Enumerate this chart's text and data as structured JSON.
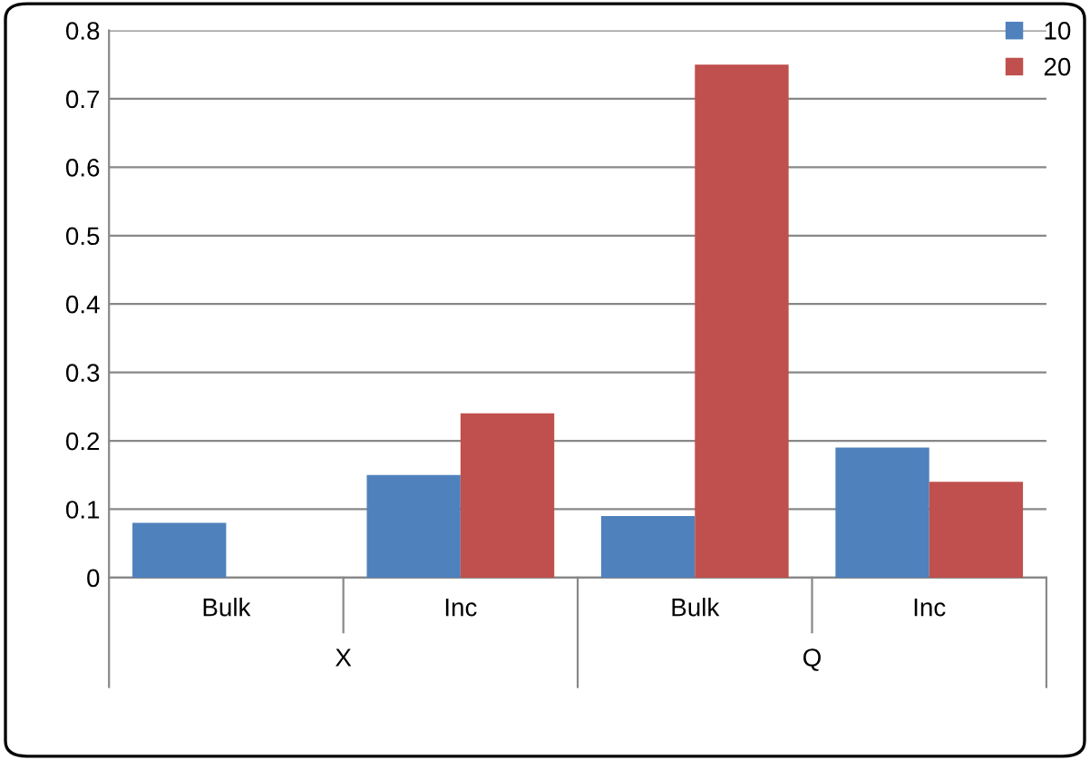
{
  "chart_data": {
    "type": "bar",
    "categories": [
      "Bulk",
      "Inc",
      "Bulk",
      "Inc"
    ],
    "series": [
      {
        "name": "10",
        "color": "#4f81bd",
        "values": [
          0.08,
          0.15,
          0.09,
          0.19
        ]
      },
      {
        "name": "20",
        "color": "#c0504d",
        "values": [
          null,
          0.24,
          0.75,
          0.14
        ]
      }
    ],
    "annotations": [
      "X",
      "Q"
    ],
    "ylim": [
      0,
      0.8
    ],
    "yticks": [
      0,
      0.1,
      0.2,
      0.3,
      0.4,
      0.5,
      0.6,
      0.7,
      0.8
    ],
    "grid": "y",
    "legend": "top right"
  }
}
